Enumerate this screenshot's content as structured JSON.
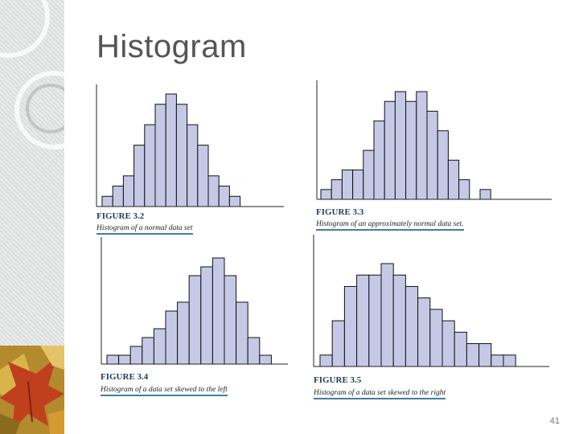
{
  "slide": {
    "title": "Histogram",
    "page_number": "41"
  },
  "colors": {
    "bar_fill": "#c6c9e6",
    "bar_stroke": "#111111",
    "caption_underline": "#3f7ea6",
    "label": "#1f3b5a"
  },
  "chart_data": [
    {
      "type": "bar",
      "figure_label": "FIGURE 3.2",
      "caption": "Histogram of a normal data set",
      "xlabel": "",
      "ylabel": "",
      "values": [
        1,
        2,
        3,
        6,
        8,
        10,
        11,
        10,
        8,
        6,
        3,
        2,
        1
      ],
      "ylim": [
        0,
        11
      ]
    },
    {
      "type": "bar",
      "figure_label": "FIGURE 3.3",
      "caption": "Histogram of an approximately normal data set.",
      "xlabel": "",
      "ylabel": "",
      "values": [
        1,
        2,
        3,
        3,
        5,
        8,
        10,
        11,
        10,
        11,
        9,
        7,
        4,
        2,
        0,
        1
      ],
      "ylim": [
        0,
        11
      ]
    },
    {
      "type": "bar",
      "figure_label": "FIGURE 3.4",
      "caption": "Histogram of a data set skewed to the left",
      "xlabel": "",
      "ylabel": "",
      "values": [
        1,
        1,
        2,
        3,
        4,
        6,
        7,
        10,
        11,
        12,
        10,
        7,
        3,
        1
      ],
      "ylim": [
        0,
        12
      ]
    },
    {
      "type": "bar",
      "figure_label": "FIGURE 3.5",
      "caption": "Histogram of a data set skewed to the right",
      "xlabel": "",
      "ylabel": "",
      "values": [
        1,
        4,
        7,
        8,
        8,
        9,
        8,
        7,
        6,
        5,
        4,
        3,
        2,
        2,
        1,
        1
      ],
      "ylim": [
        0,
        9
      ]
    }
  ]
}
